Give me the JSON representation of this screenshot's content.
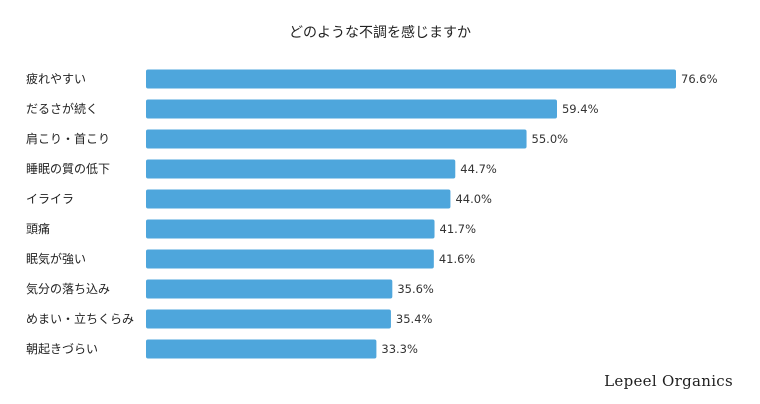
{
  "chart_data": {
    "type": "bar",
    "orientation": "horizontal",
    "title": "どのような不調を感じますか",
    "categories": [
      "疲れやすい",
      "だるさが続く",
      "肩こり・首こり",
      "睡眠の質の低下",
      "イライラ",
      "頭痛",
      "眠気が強い",
      "気分の落ち込み",
      "めまい・立ちくらみ",
      "朝起きづらい"
    ],
    "values": [
      76.6,
      59.4,
      55.0,
      44.7,
      44.0,
      41.7,
      41.6,
      35.6,
      35.4,
      33.3
    ],
    "value_labels": [
      "76.6%",
      "59.4%",
      "55.0%",
      "44.7%",
      "44.0%",
      "41.7%",
      "41.6%",
      "35.6%",
      "35.4%",
      "33.3%"
    ],
    "unit": "%",
    "xlim": [
      0,
      100
    ],
    "grid": false,
    "legend": "none",
    "bar_color": "#4ea6dc"
  },
  "brand": "Lepeel Organics"
}
